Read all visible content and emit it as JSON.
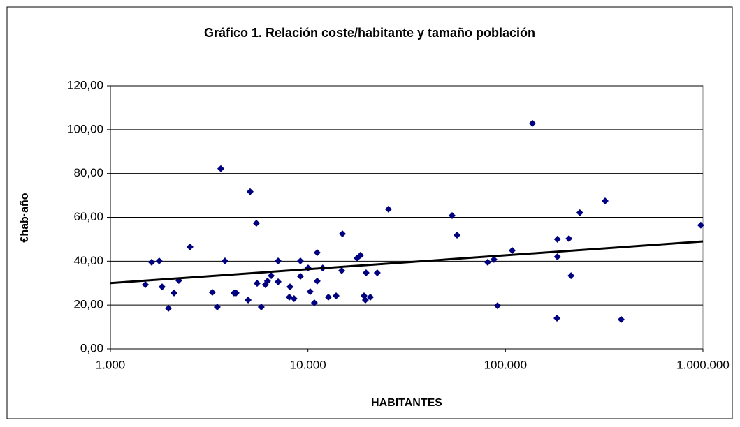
{
  "chart_data": {
    "type": "scatter",
    "title": "Gráfico 1. Relación coste/habitante y tamaño población",
    "x_label": "HABITANTES",
    "y_label": "€hab·año",
    "x_scale": "log",
    "grid": true,
    "color": "#000080",
    "x": [
      1503,
      1617,
      1766,
      1827,
      1967,
      2099,
      2220,
      2529,
      3281,
      3475,
      3622,
      3802,
      4225,
      4330,
      4980,
      5100,
      5483,
      5530,
      5805,
      6090,
      6240,
      6516,
      7065,
      7065,
      8050,
      8116,
      8504,
      9160,
      9160,
      10023,
      10263,
      10780,
      11140,
      11140,
      11880,
      12690,
      13890,
      14830,
      14950,
      17750,
      18460,
      19230,
      19540,
      19700,
      20700,
      22440,
      25570,
      53700,
      56880,
      81310,
      87450,
      91140,
      108200,
      137000,
      182300,
      183200,
      183200,
      209600,
      214800,
      238000,
      319600,
      385500,
      975000
    ],
    "values": [
      29.3,
      39.5,
      40.1,
      28.3,
      18.5,
      25.5,
      31.2,
      46.5,
      25.8,
      19.1,
      82.2,
      40.1,
      25.5,
      25.5,
      22.3,
      71.7,
      57.3,
      29.9,
      19.1,
      29.3,
      30.9,
      33.4,
      40.1,
      30.6,
      23.6,
      28.3,
      22.9,
      40.1,
      33.1,
      36.9,
      26.1,
      21.0,
      43.9,
      30.9,
      36.9,
      23.6,
      24.2,
      35.7,
      52.5,
      41.4,
      42.7,
      24.2,
      22.3,
      34.7,
      23.6,
      34.7,
      63.7,
      60.8,
      51.9,
      39.5,
      40.8,
      19.7,
      44.9,
      102.9,
      14.0,
      50.0,
      42.0,
      50.3,
      33.4,
      62.1,
      67.5,
      13.4,
      56.4
    ],
    "trendline": {
      "x": [
        1000,
        1000000
      ],
      "y": [
        30,
        49
      ],
      "color": "#000000"
    },
    "xlim": [
      1000,
      1000000
    ],
    "xticks": [
      {
        "value": 1000,
        "label": "1.000"
      },
      {
        "value": 10000,
        "label": "10.000"
      },
      {
        "value": 100000,
        "label": "100.000"
      },
      {
        "value": 1000000,
        "label": "1.000.000"
      }
    ],
    "ylim": [
      0,
      120
    ],
    "yticks": [
      {
        "value": 0,
        "label": "0,00"
      },
      {
        "value": 20,
        "label": "20,00"
      },
      {
        "value": 40,
        "label": "40,00"
      },
      {
        "value": 60,
        "label": "60,00"
      },
      {
        "value": 80,
        "label": "80,00"
      },
      {
        "value": 100,
        "label": "100,00"
      },
      {
        "value": 120,
        "label": "120,00"
      }
    ]
  }
}
